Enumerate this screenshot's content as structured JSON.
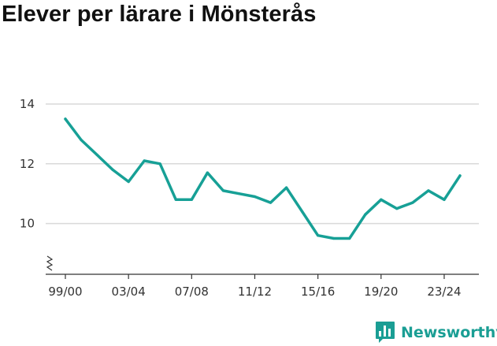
{
  "title": "Elever per lärare i Mönsterås",
  "brand": {
    "name": "Newsworthy",
    "icon": "newsworthy-logo-icon"
  },
  "colors": {
    "line": "#17a096",
    "grid": "#d9d9d9",
    "axis": "#333333",
    "brand": "#1a9e94"
  },
  "chart_data": {
    "type": "line",
    "title": "Elever per lärare i Mönsterås",
    "xlabel": "",
    "ylabel": "",
    "ylim": [
      8.3,
      14
    ],
    "y_ticks": [
      10,
      12,
      14
    ],
    "y_axis_break": true,
    "grid": true,
    "x_tick_labels": [
      "99/00",
      "03/04",
      "07/08",
      "11/12",
      "15/16",
      "19/20",
      "23/24"
    ],
    "x": [
      "99/00",
      "00/01",
      "01/02",
      "02/03",
      "03/04",
      "04/05",
      "05/06",
      "06/07",
      "07/08",
      "08/09",
      "09/10",
      "10/11",
      "11/12",
      "12/13",
      "13/14",
      "14/15",
      "15/16",
      "16/17",
      "17/18",
      "18/19",
      "19/20",
      "20/21",
      "21/22",
      "22/23",
      "23/24",
      "24/25"
    ],
    "series": [
      {
        "values": [
          13.5,
          12.8,
          12.3,
          11.8,
          11.4,
          12.1,
          12.0,
          10.8,
          10.8,
          11.7,
          11.1,
          11.0,
          10.9,
          10.7,
          11.2,
          10.4,
          9.6,
          9.5,
          9.5,
          10.3,
          10.8,
          10.5,
          10.7,
          11.1,
          10.8,
          11.6
        ]
      }
    ]
  }
}
